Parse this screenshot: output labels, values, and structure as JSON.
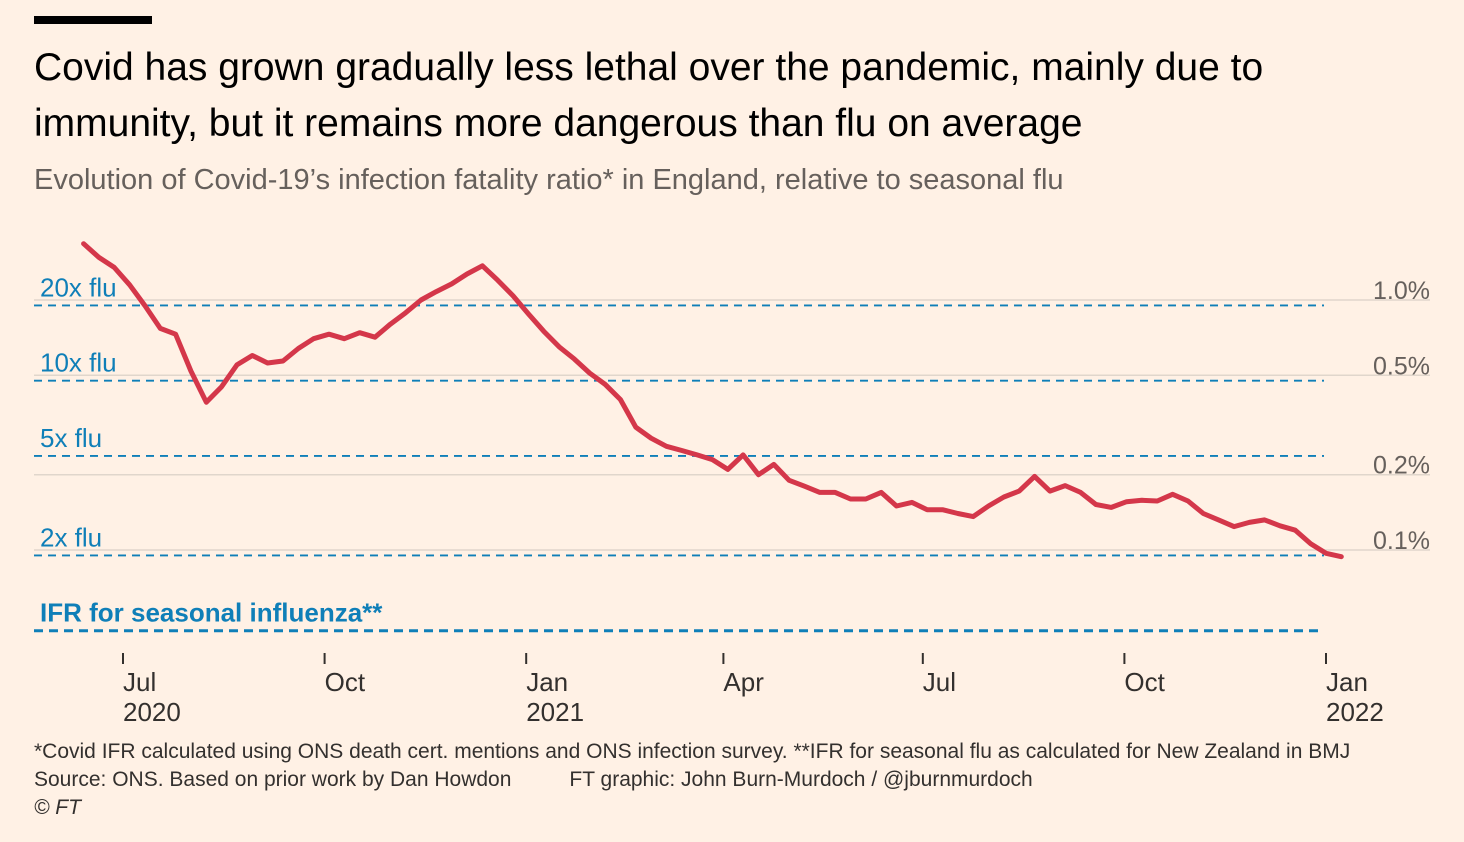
{
  "header": {
    "title": "Covid has grown gradually less lethal over the pandemic, mainly due to immunity, but it remains more dangerous than flu on average",
    "subtitle": "Evolution of Covid-19’s infection fatality ratio* in England, relative to seasonal flu"
  },
  "footer": {
    "note": "*Covid IFR calculated using ONS death cert. mentions and ONS infection survey. **IFR for seasonal flu as calculated for New Zealand in BMJ",
    "source": "Source: ONS. Based on prior work by Dan Howdon",
    "credit": "FT graphic: John Burn-Murdoch / @jburnmurdoch",
    "copyright": "© FT"
  },
  "chart_data": {
    "type": "line",
    "y_scale": "log",
    "ylim": [
      0.04,
      1.8
    ],
    "xlim": [
      "2020-06-15",
      "2022-01-15"
    ],
    "grid": true,
    "colors": {
      "series": "#d4374a",
      "reference": "#0f7fb8",
      "grid": "#e0d6cc",
      "text": "#66605c"
    },
    "y_ticks": [
      {
        "value": 1.0,
        "label": "1.0%"
      },
      {
        "value": 0.5,
        "label": "0.5%"
      },
      {
        "value": 0.2,
        "label": "0.2%"
      },
      {
        "value": 0.1,
        "label": "0.1%"
      }
    ],
    "x_ticks": [
      {
        "date": "2020-07-01",
        "month": "Jul",
        "year": "2020"
      },
      {
        "date": "2020-10-01",
        "month": "Oct",
        "year": ""
      },
      {
        "date": "2021-01-01",
        "month": "Jan",
        "year": "2021"
      },
      {
        "date": "2021-04-01",
        "month": "Apr",
        "year": ""
      },
      {
        "date": "2021-07-01",
        "month": "Jul",
        "year": ""
      },
      {
        "date": "2021-10-01",
        "month": "Oct",
        "year": ""
      },
      {
        "date": "2022-01-01",
        "month": "Jan",
        "year": "2022"
      }
    ],
    "reference_lines": [
      {
        "label": "20x flu",
        "value": 0.96,
        "style": "dashed"
      },
      {
        "label": "10x flu",
        "value": 0.48,
        "style": "dashed"
      },
      {
        "label": "5x flu",
        "value": 0.24,
        "style": "dashed"
      },
      {
        "label": "2x flu",
        "value": 0.096,
        "style": "dashed"
      },
      {
        "label": "IFR for seasonal influenza**",
        "value": 0.048,
        "style": "dashed-bold"
      }
    ],
    "series": [
      {
        "name": "",
        "x": [
          "2020-06-13",
          "2020-06-20",
          "2020-06-27",
          "2020-07-04",
          "2020-07-11",
          "2020-07-18",
          "2020-07-25",
          "2020-08-01",
          "2020-08-08",
          "2020-08-15",
          "2020-08-22",
          "2020-08-29",
          "2020-09-05",
          "2020-09-12",
          "2020-09-19",
          "2020-09-26",
          "2020-10-03",
          "2020-10-10",
          "2020-10-17",
          "2020-10-24",
          "2020-10-31",
          "2020-11-07",
          "2020-11-14",
          "2020-11-21",
          "2020-11-28",
          "2020-12-05",
          "2020-12-12",
          "2020-12-19",
          "2020-12-26",
          "2021-01-02",
          "2021-01-09",
          "2021-01-16",
          "2021-01-23",
          "2021-01-30",
          "2021-02-06",
          "2021-02-13",
          "2021-02-20",
          "2021-02-27",
          "2021-03-06",
          "2021-03-13",
          "2021-03-20",
          "2021-03-27",
          "2021-04-03",
          "2021-04-10",
          "2021-04-17",
          "2021-04-24",
          "2021-05-01",
          "2021-05-08",
          "2021-05-15",
          "2021-05-22",
          "2021-05-29",
          "2021-06-05",
          "2021-06-12",
          "2021-06-19",
          "2021-06-26",
          "2021-07-03",
          "2021-07-10",
          "2021-07-17",
          "2021-07-24",
          "2021-07-31",
          "2021-08-07",
          "2021-08-14",
          "2021-08-21",
          "2021-08-28",
          "2021-09-04",
          "2021-09-11",
          "2021-09-18",
          "2021-09-25",
          "2021-10-02",
          "2021-10-09",
          "2021-10-16",
          "2021-10-23",
          "2021-10-30",
          "2021-11-06",
          "2021-11-13",
          "2021-11-20",
          "2021-11-27",
          "2021-12-04",
          "2021-12-11",
          "2021-12-18",
          "2021-12-25",
          "2022-01-01",
          "2022-01-08"
        ],
        "values": [
          1.68,
          1.48,
          1.35,
          1.15,
          0.95,
          0.77,
          0.73,
          0.52,
          0.39,
          0.45,
          0.55,
          0.6,
          0.56,
          0.57,
          0.64,
          0.7,
          0.73,
          0.7,
          0.74,
          0.71,
          0.8,
          0.89,
          1.0,
          1.08,
          1.16,
          1.27,
          1.37,
          1.2,
          1.04,
          0.88,
          0.75,
          0.65,
          0.58,
          0.51,
          0.46,
          0.4,
          0.31,
          0.28,
          0.26,
          0.25,
          0.24,
          0.23,
          0.21,
          0.24,
          0.2,
          0.22,
          0.19,
          0.18,
          0.17,
          0.17,
          0.16,
          0.16,
          0.17,
          0.15,
          0.155,
          0.145,
          0.145,
          0.14,
          0.136,
          0.15,
          0.163,
          0.172,
          0.197,
          0.172,
          0.181,
          0.17,
          0.152,
          0.148,
          0.156,
          0.158,
          0.157,
          0.167,
          0.157,
          0.14,
          0.132,
          0.124,
          0.129,
          0.132,
          0.125,
          0.12,
          0.106,
          0.097,
          0.094
        ]
      }
    ]
  }
}
